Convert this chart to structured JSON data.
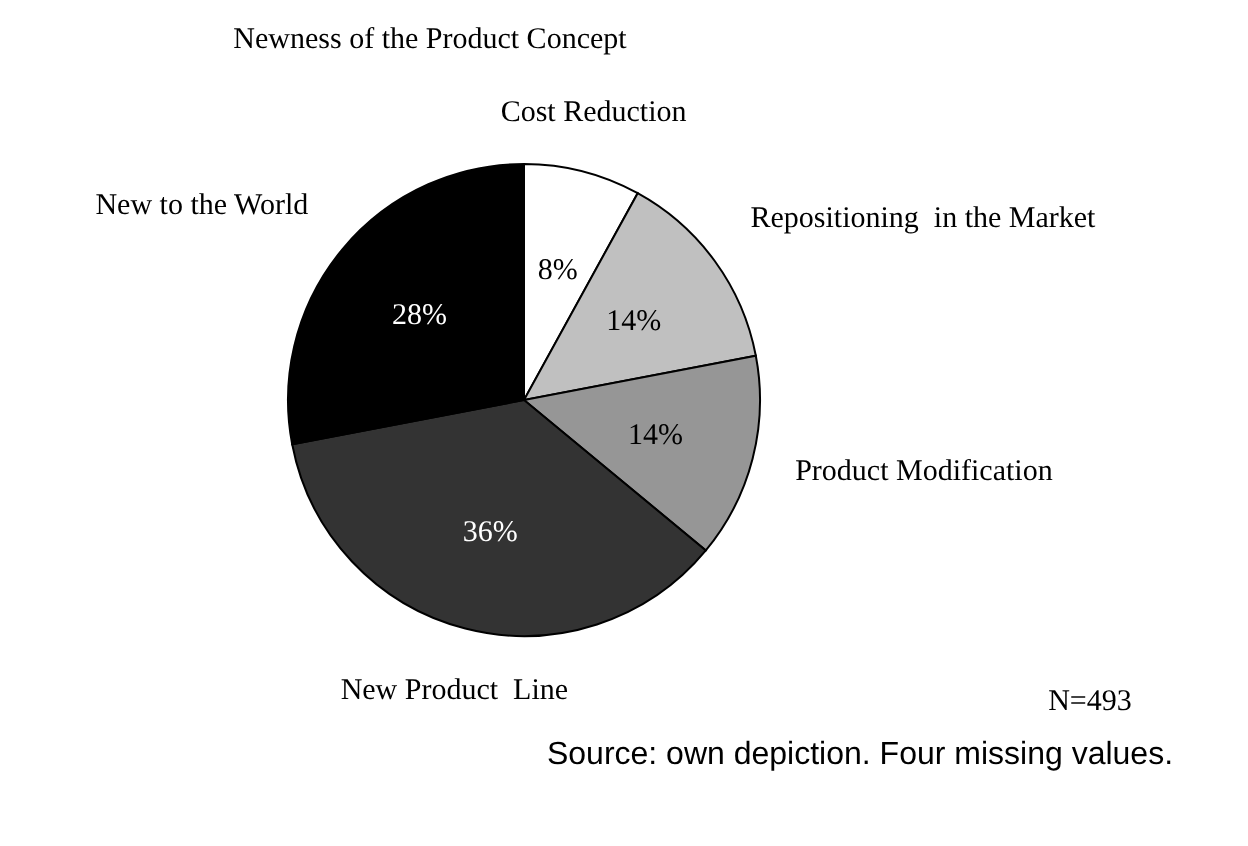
{
  "chart_data": {
    "type": "pie",
    "title": "Newness of the Product Concept",
    "categories": [
      "Cost Reduction",
      "Repositioning  in the Market",
      "Product Modification",
      "New Product  Line",
      "New to the World"
    ],
    "values": [
      8,
      14,
      14,
      36,
      28
    ],
    "value_labels": [
      "8%",
      "14%",
      "14%",
      "36%",
      "28%"
    ],
    "colors": [
      "#ffffff",
      "#c0c0c0",
      "#969696",
      "#333333",
      "#000000"
    ],
    "annotations": [
      "N=493",
      "Source: own depiction. Four missing values."
    ]
  }
}
